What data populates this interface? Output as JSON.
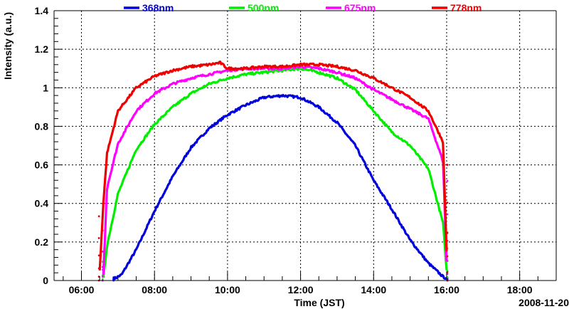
{
  "chart_data": {
    "type": "line",
    "title": "",
    "xlabel": "Time (JST)",
    "ylabel": "Intensity (a.u.)",
    "date_label": "2008-11-20",
    "xlim": [
      5.25,
      19.0
    ],
    "ylim": [
      0,
      1.4
    ],
    "grid": true,
    "legend_position": "top",
    "x_ticks": [
      6,
      8,
      10,
      12,
      14,
      16,
      18
    ],
    "x_tick_labels": [
      "06:00",
      "08:00",
      "10:00",
      "12:00",
      "14:00",
      "16:00",
      "18:00"
    ],
    "y_ticks": [
      0,
      0.2,
      0.4,
      0.6,
      0.8,
      1.0,
      1.2,
      1.4
    ],
    "y_tick_labels": [
      "0",
      "0.2",
      "0.4",
      "0.6",
      "0.8",
      "1",
      "1.2",
      "1.4"
    ],
    "series": [
      {
        "name": "368nm",
        "color": "#0000dd",
        "x": [
          6.9,
          7.1,
          7.5,
          8.0,
          8.5,
          9.0,
          9.5,
          10.0,
          10.5,
          11.0,
          11.5,
          12.0,
          12.5,
          13.0,
          13.5,
          14.0,
          14.5,
          15.0,
          15.5,
          15.9,
          16.0
        ],
        "y": [
          0.01,
          0.03,
          0.16,
          0.36,
          0.54,
          0.69,
          0.79,
          0.86,
          0.91,
          0.95,
          0.96,
          0.95,
          0.9,
          0.82,
          0.7,
          0.52,
          0.37,
          0.21,
          0.09,
          0.02,
          0.01
        ]
      },
      {
        "name": "500nm",
        "color": "#00ee00",
        "x": [
          6.6,
          6.7,
          7.0,
          7.5,
          8.0,
          8.5,
          9.0,
          9.5,
          10.0,
          10.5,
          11.0,
          11.5,
          12.0,
          12.5,
          13.0,
          13.5,
          14.0,
          14.5,
          15.0,
          15.5,
          15.9,
          16.0
        ],
        "y": [
          0.01,
          0.18,
          0.45,
          0.68,
          0.81,
          0.9,
          0.97,
          1.02,
          1.05,
          1.07,
          1.08,
          1.09,
          1.1,
          1.08,
          1.05,
          0.99,
          0.88,
          0.77,
          0.7,
          0.58,
          0.3,
          0.05
        ]
      },
      {
        "name": "675nm",
        "color": "#ff00ff",
        "x": [
          6.6,
          6.7,
          7.0,
          7.5,
          8.0,
          8.5,
          9.0,
          9.5,
          10.0,
          10.5,
          11.0,
          11.5,
          12.0,
          12.5,
          13.0,
          13.5,
          14.0,
          14.5,
          15.0,
          15.5,
          15.9,
          16.0
        ],
        "y": [
          0.03,
          0.48,
          0.71,
          0.88,
          0.97,
          1.02,
          1.05,
          1.07,
          1.09,
          1.1,
          1.1,
          1.1,
          1.11,
          1.1,
          1.08,
          1.05,
          0.99,
          0.94,
          0.89,
          0.84,
          0.62,
          0.1
        ]
      },
      {
        "name": "778nm",
        "color": "#ee0000",
        "x": [
          6.5,
          6.6,
          6.7,
          7.0,
          7.5,
          8.0,
          8.5,
          9.0,
          9.5,
          9.8,
          10.0,
          10.5,
          11.0,
          11.5,
          12.0,
          12.5,
          13.0,
          13.5,
          14.0,
          14.5,
          15.0,
          15.5,
          15.9,
          16.0
        ],
        "y": [
          0.05,
          0.4,
          0.66,
          0.88,
          1.0,
          1.06,
          1.09,
          1.11,
          1.12,
          1.13,
          1.1,
          1.1,
          1.11,
          1.11,
          1.12,
          1.12,
          1.11,
          1.09,
          1.05,
          1.0,
          0.95,
          0.88,
          0.72,
          0.15
        ]
      }
    ]
  }
}
